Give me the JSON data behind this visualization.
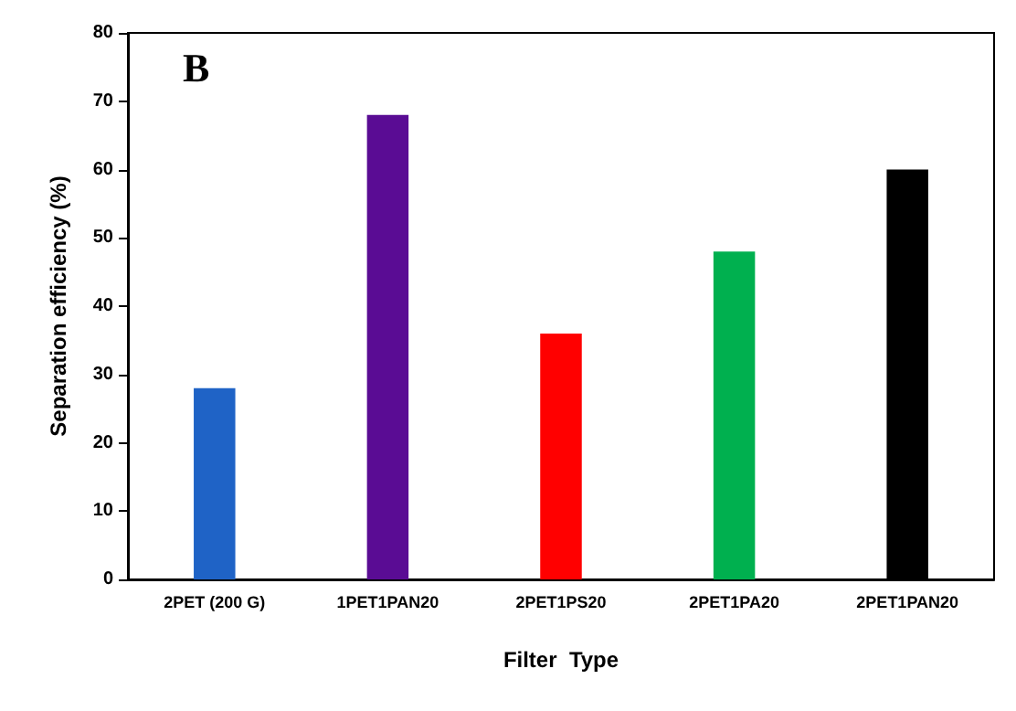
{
  "chart_data": {
    "type": "bar",
    "xlabel": "Filter  Type",
    "ylabel": "Separation efficiency (%)",
    "categories": [
      "2PET (200 G)",
      "1PET1PAN20",
      "2PET1PS20",
      "2PET1PA20",
      "2PET1PAN20"
    ],
    "values": [
      28,
      68,
      36,
      48,
      60
    ],
    "colors": [
      "#1f63c6",
      "#5a0c94",
      "#ff0000",
      "#00b04f",
      "#000000"
    ],
    "ylim": [
      0,
      80
    ],
    "yticks": [
      0,
      10,
      20,
      30,
      40,
      50,
      60,
      70,
      80
    ],
    "grid": false,
    "annotations": [
      "B"
    ]
  }
}
